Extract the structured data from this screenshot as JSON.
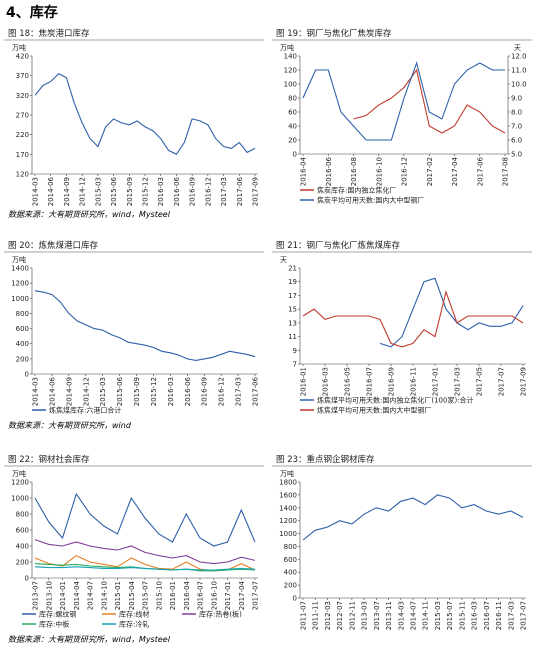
{
  "section_title": "4、库存",
  "sources": [
    "数据来源：大有期货研究所，wind，Mysteel",
    "数据来源：大有期货研究所，wind",
    "数据来源：大有期货研究所，wind，Mysteel"
  ],
  "chart_data": [
    {
      "type": "line",
      "title": "图 18：焦炭港口库存",
      "unit": "万吨",
      "categories": [
        "2014-03",
        null,
        "2014-06",
        null,
        "2014-09",
        null,
        "2014-12",
        null,
        "2015-03",
        null,
        "2015-06",
        null,
        "2015-09",
        null,
        "2015-12",
        null,
        "2016-03",
        null,
        "2016-06",
        null,
        "2016-09",
        null,
        "2016-12",
        null,
        "2017-03",
        null,
        "2017-06",
        null,
        "2017-09"
      ],
      "series": [
        {
          "color": "#2e5fa8",
          "values": [
            320,
            345,
            355,
            375,
            365,
            300,
            250,
            210,
            190,
            240,
            260,
            250,
            245,
            255,
            240,
            230,
            210,
            180,
            170,
            200,
            260,
            255,
            245,
            210,
            190,
            185,
            200,
            175,
            185
          ]
        }
      ],
      "ylim": [
        120,
        420
      ],
      "yticks": [
        120,
        170,
        220,
        270,
        320,
        370,
        420
      ]
    },
    {
      "type": "line",
      "title": "图 19：钢厂与焦化厂焦炭库存",
      "unit": "万吨",
      "y2unit": "天",
      "categories": [
        "2016-04",
        null,
        "2016-06",
        null,
        "2016-08",
        null,
        "2016-10",
        null,
        "2016-12",
        null,
        "2017-02",
        null,
        "2017-04",
        null,
        "2017-06",
        null,
        "2017-08"
      ],
      "series": [
        {
          "name": "焦炭库存:国内独立焦化厂",
          "color": "#c0392b",
          "values": [
            null,
            null,
            null,
            null,
            50,
            55,
            70,
            80,
            95,
            120,
            40,
            30,
            40,
            70,
            60,
            40,
            30
          ]
        },
        {
          "name": "焦炭平均可用天数:国内大中型钢厂",
          "color": "#2e5fa8",
          "axis": "y2",
          "values": [
            9.0,
            11.0,
            11.0,
            8.0,
            7.0,
            6.0,
            6.0,
            6.0,
            9.0,
            11.5,
            8.0,
            7.5,
            10.0,
            11.0,
            11.5,
            11.0,
            11.0
          ]
        }
      ],
      "ylim": [
        0,
        140
      ],
      "yticks": [
        0,
        20,
        40,
        60,
        80,
        100,
        120,
        140
      ],
      "y2lim": [
        5,
        12
      ],
      "y2ticks": [
        {
          "value": 5,
          "label": "5.0"
        },
        {
          "value": 6,
          "label": "6.0"
        },
        {
          "value": 7,
          "label": "7.0"
        },
        {
          "value": 8,
          "label": "8.0"
        },
        {
          "value": 9,
          "label": "9.0"
        },
        {
          "value": 10,
          "label": "10.0"
        },
        {
          "value": 11,
          "label": "11.0"
        },
        {
          "value": 12,
          "label": "12.0"
        }
      ]
    },
    {
      "type": "line",
      "title": "图 20：炼焦煤港口库存",
      "unit": "万吨",
      "categories": [
        "2014-03",
        null,
        "2014-06",
        null,
        "2014-09",
        null,
        "2014-12",
        null,
        "2015-03",
        null,
        "2015-06",
        null,
        "2015-09",
        null,
        "2015-12",
        null,
        "2016-03",
        null,
        "2016-06",
        null,
        "2016-09",
        null,
        "2016-12",
        null,
        "2017-03",
        null,
        "2017-06"
      ],
      "series": [
        {
          "name": "炼焦煤库存:六港口合计",
          "color": "#2e5fa8",
          "values": [
            1100,
            1080,
            1050,
            950,
            800,
            700,
            650,
            600,
            580,
            520,
            480,
            420,
            400,
            380,
            350,
            300,
            280,
            250,
            200,
            180,
            200,
            220,
            260,
            300,
            280,
            260,
            230
          ]
        }
      ],
      "ylim": [
        0,
        1400
      ],
      "yticks": [
        0,
        200,
        400,
        600,
        800,
        1000,
        1200,
        1400
      ]
    },
    {
      "type": "line",
      "title": "图 21：钢厂与焦化厂炼焦煤库存",
      "unit": "天",
      "categories": [
        "2016-01",
        null,
        "2016-03",
        null,
        "2016-05",
        null,
        "2016-07",
        null,
        "2016-09",
        null,
        "2016-11",
        null,
        "2017-01",
        null,
        "2017-03",
        null,
        "2017-05",
        null,
        "2017-07",
        null,
        "2017-09"
      ],
      "series": [
        {
          "name": "炼焦煤平均可用天数:国内独立焦化厂(100家):合计",
          "color": "#2e5fa8",
          "values": [
            null,
            null,
            null,
            null,
            null,
            null,
            null,
            10,
            9.5,
            11,
            15,
            19,
            19.5,
            15,
            13,
            12,
            13,
            12.5,
            12.5,
            13,
            15.5
          ]
        },
        {
          "name": "炼焦煤平均可用天数:国内大中型钢厂",
          "color": "#c0392b",
          "values": [
            14,
            15,
            13.5,
            14,
            14,
            14,
            14,
            13.5,
            10,
            9.5,
            10,
            12,
            11,
            17.5,
            13,
            14,
            14,
            14,
            14,
            14,
            13
          ]
        }
      ],
      "ylim": [
        7,
        21
      ],
      "yticks": [
        7,
        9,
        11,
        13,
        15,
        17,
        19,
        21
      ]
    },
    {
      "type": "line",
      "title": "图 22：钢材社会库存",
      "unit": "万吨",
      "categories": [
        "2013-07",
        "2013-10",
        "2014-01",
        "2014-04",
        "2014-07",
        "2014-10",
        "2015-01",
        "2015-04",
        "2015-07",
        "2015-10",
        "2016-01",
        "2016-04",
        "2016-07",
        "2016-10",
        "2017-01",
        "2017-04",
        "2017-07"
      ],
      "series": [
        {
          "name": "库存:螺纹钢",
          "color": "#2e5fa8",
          "values": [
            1000,
            700,
            500,
            1050,
            800,
            650,
            550,
            1000,
            750,
            550,
            450,
            800,
            500,
            400,
            450,
            850,
            450
          ]
        },
        {
          "name": "库存:线材",
          "color": "#e67e22",
          "values": [
            250,
            180,
            150,
            280,
            200,
            170,
            140,
            250,
            170,
            120,
            110,
            200,
            110,
            90,
            100,
            180,
            100
          ]
        },
        {
          "name": "库存:热卷(板)",
          "color": "#7d3c98",
          "values": [
            480,
            420,
            400,
            450,
            400,
            370,
            350,
            400,
            320,
            280,
            250,
            280,
            200,
            180,
            200,
            260,
            220
          ]
        },
        {
          "name": "库存:中板",
          "color": "#27ae60",
          "values": [
            180,
            170,
            160,
            170,
            150,
            140,
            130,
            140,
            120,
            110,
            100,
            110,
            90,
            90,
            100,
            110,
            100
          ]
        },
        {
          "name": "库存:冷轧",
          "color": "#17a2b8",
          "values": [
            140,
            130,
            130,
            140,
            130,
            120,
            120,
            130,
            120,
            110,
            100,
            110,
            100,
            100,
            110,
            120,
            110
          ]
        }
      ],
      "ylim": [
        0,
        1200
      ],
      "yticks": [
        0,
        200,
        400,
        600,
        800,
        1000,
        1200
      ]
    },
    {
      "type": "line",
      "title": "图 23：重点钢企钢材库存",
      "unit": "万吨",
      "categories": [
        "2011-07",
        "2011-11",
        "2012-03",
        "2012-07",
        "2012-11",
        "2013-03",
        "2013-07",
        "2013-11",
        "2014-03",
        "2014-07",
        "2014-11",
        "2015-03",
        "2015-07",
        "2015-11",
        "2016-03",
        "2016-07",
        "2016-11",
        "2017-03",
        "2017-07"
      ],
      "series": [
        {
          "color": "#2e5fa8",
          "values": [
            900,
            1050,
            1100,
            1200,
            1150,
            1300,
            1400,
            1350,
            1500,
            1550,
            1450,
            1600,
            1550,
            1400,
            1450,
            1350,
            1300,
            1350,
            1250
          ]
        }
      ],
      "ylim": [
        0,
        1800
      ],
      "yticks": [
        0,
        200,
        400,
        600,
        800,
        1000,
        1200,
        1400,
        1600,
        1800
      ]
    }
  ]
}
